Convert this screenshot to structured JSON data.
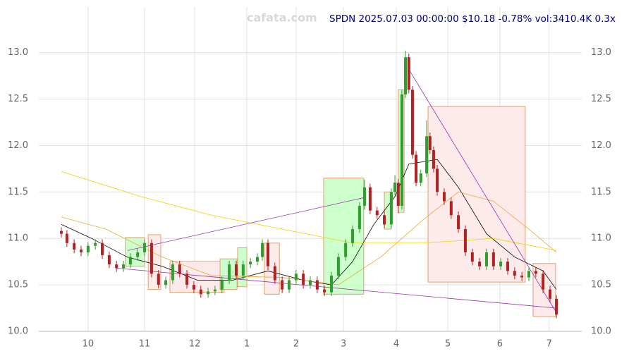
{
  "chart_data": {
    "type": "candlestick",
    "title": "SPDN 2025.07.03 00:00:00 $10.18 -0.78% vol:3410.4K 0.3x",
    "watermark": "cafata.com",
    "x": [
      8.1,
      10.1,
      12.7,
      15.2,
      17.7,
      20.3,
      22.8,
      25.3,
      27.9,
      30.4,
      32.9,
      35.5,
      38.0,
      40.5,
      43.0,
      45.6,
      48.1,
      50.6,
      53.2,
      55.7,
      58.2,
      60.8,
      63.3,
      65.8,
      68.4,
      70.9,
      73.4,
      76.0,
      78.5,
      80.3,
      82.3,
      84.8,
      87.4,
      89.9,
      92.4,
      95.0,
      97.5,
      100.0,
      102.6,
      105.1,
      107.6,
      110.2,
      112.7,
      115.2,
      117.0,
      119.0,
      121.5,
      124.1,
      126.6,
      127.9,
      129.1,
      130.4,
      131.7,
      132.9,
      134.2,
      135.5,
      137.2,
      139.3,
      140.5,
      141.8,
      143.1,
      145.6,
      148.1,
      150.7,
      153.2,
      155.7,
      158.3,
      160.8,
      163.3,
      165.9,
      168.4,
      170.9,
      173.5,
      176.0,
      178.5,
      181.1,
      183.6,
      185.9
    ],
    "open": [
      11.08,
      11.05,
      10.95,
      10.88,
      10.85,
      10.92,
      10.95,
      10.82,
      10.72,
      10.68,
      10.72,
      10.8,
      10.85,
      10.95,
      10.62,
      10.5,
      10.55,
      10.72,
      10.62,
      10.5,
      10.45,
      10.4,
      10.43,
      10.45,
      10.55,
      10.72,
      10.6,
      10.72,
      10.75,
      10.8,
      10.95,
      10.7,
      10.55,
      10.45,
      10.55,
      10.62,
      10.5,
      10.55,
      10.45,
      10.42,
      10.6,
      10.8,
      10.95,
      11.1,
      11.35,
      11.55,
      11.3,
      11.25,
      11.15,
      11.5,
      11.6,
      11.35,
      12.55,
      12.95,
      12.6,
      11.9,
      11.6,
      11.7,
      12.1,
      11.95,
      11.75,
      11.5,
      11.4,
      11.25,
      11.1,
      10.85,
      10.75,
      10.7,
      10.85,
      10.7,
      10.75,
      10.65,
      10.6,
      10.58,
      10.65,
      10.62,
      10.45,
      10.35
    ],
    "high": [
      11.12,
      11.09,
      10.99,
      10.92,
      10.96,
      10.99,
      10.99,
      10.86,
      10.76,
      10.76,
      10.84,
      10.89,
      10.99,
      10.99,
      10.66,
      10.59,
      10.76,
      10.76,
      10.66,
      10.54,
      10.49,
      10.47,
      10.49,
      10.59,
      10.76,
      10.76,
      10.76,
      10.79,
      10.84,
      10.99,
      10.99,
      10.74,
      10.59,
      10.59,
      10.66,
      10.66,
      10.59,
      10.59,
      10.49,
      10.64,
      10.84,
      10.99,
      11.14,
      11.39,
      11.63,
      11.59,
      11.34,
      11.29,
      11.54,
      11.68,
      11.64,
      12.6,
      13.02,
      12.99,
      12.64,
      11.94,
      11.74,
      12.27,
      12.14,
      11.99,
      11.79,
      11.54,
      11.44,
      11.29,
      11.14,
      10.89,
      10.79,
      10.89,
      10.89,
      10.79,
      10.79,
      10.69,
      10.64,
      10.69,
      10.69,
      10.66,
      10.49,
      10.39
    ],
    "low": [
      11.01,
      10.91,
      10.84,
      10.81,
      10.81,
      10.88,
      10.78,
      10.68,
      10.64,
      10.64,
      10.68,
      10.76,
      10.81,
      10.58,
      10.46,
      10.46,
      10.51,
      10.58,
      10.46,
      10.41,
      10.36,
      10.36,
      10.39,
      10.41,
      10.51,
      10.56,
      10.56,
      10.68,
      10.71,
      10.76,
      10.66,
      10.51,
      10.41,
      10.41,
      10.51,
      10.46,
      10.46,
      10.41,
      10.38,
      10.38,
      10.56,
      10.76,
      10.91,
      11.06,
      11.31,
      11.26,
      11.21,
      11.11,
      11.11,
      11.46,
      11.27,
      11.31,
      12.51,
      12.56,
      11.86,
      11.56,
      11.56,
      11.66,
      11.91,
      11.71,
      11.46,
      11.36,
      11.21,
      11.06,
      10.81,
      10.71,
      10.66,
      10.66,
      10.66,
      10.66,
      10.61,
      10.56,
      10.54,
      10.54,
      10.58,
      10.41,
      10.31,
      10.14
    ],
    "close": [
      11.05,
      10.95,
      10.88,
      10.85,
      10.92,
      10.95,
      10.82,
      10.72,
      10.68,
      10.72,
      10.8,
      10.85,
      10.95,
      10.62,
      10.5,
      10.55,
      10.72,
      10.62,
      10.5,
      10.45,
      10.4,
      10.43,
      10.45,
      10.55,
      10.72,
      10.6,
      10.72,
      10.75,
      10.8,
      10.95,
      10.7,
      10.55,
      10.45,
      10.55,
      10.62,
      10.5,
      10.55,
      10.45,
      10.42,
      10.6,
      10.8,
      10.95,
      11.1,
      11.35,
      11.55,
      11.3,
      11.25,
      11.15,
      11.5,
      11.6,
      11.35,
      12.55,
      12.95,
      12.6,
      11.9,
      11.6,
      11.7,
      12.1,
      11.95,
      11.75,
      11.5,
      11.4,
      11.25,
      11.1,
      10.85,
      10.75,
      10.7,
      10.85,
      10.7,
      10.75,
      10.65,
      10.6,
      10.58,
      10.65,
      10.62,
      10.45,
      10.35,
      10.18
    ],
    "up_color": "#2e9e2e",
    "down_color": "#b22222",
    "overlays": [
      {
        "color": "#000000",
        "x": [
          8.1,
          19.0,
          31.7,
          44.3,
          57.0,
          69.6,
          82.3,
          95.0,
          105.1,
          112.7,
          120.3,
          127.9,
          132.9,
          143.1,
          150.7,
          160.8,
          170.9,
          181.1,
          185.9
        ],
        "values": [
          11.15,
          11.0,
          10.8,
          10.7,
          10.55,
          10.55,
          10.65,
          10.55,
          10.5,
          10.75,
          11.15,
          11.45,
          11.8,
          11.85,
          11.55,
          11.05,
          10.8,
          10.65,
          10.45
        ]
      },
      {
        "color": "#f0a830",
        "x": [
          8.1,
          24.1,
          44.3,
          62.0,
          87.4,
          107.6,
          122.8,
          138.0,
          150.7,
          163.3,
          176.0,
          185.9
        ],
        "values": [
          11.23,
          11.1,
          10.8,
          10.6,
          10.58,
          10.5,
          10.8,
          11.2,
          11.5,
          11.4,
          11.1,
          10.85
        ]
      },
      {
        "color": "#f5d000",
        "x": [
          8.1,
          36.7,
          62.0,
          87.4,
          112.7,
          138.0,
          163.3,
          185.9
        ],
        "values": [
          11.72,
          11.45,
          11.25,
          11.1,
          10.95,
          10.95,
          11.0,
          10.87
        ]
      }
    ],
    "boxes": [
      {
        "x": [
          31.1,
          38.0
        ],
        "y": [
          10.7,
          11.01
        ],
        "color": "green"
      },
      {
        "x": [
          39.3,
          43.8
        ],
        "y": [
          10.45,
          11.04
        ],
        "color": "red"
      },
      {
        "x": [
          47.1,
          66.6
        ],
        "y": [
          10.42,
          10.75
        ],
        "color": "red"
      },
      {
        "x": [
          65.1,
          71.2
        ],
        "y": [
          10.45,
          10.78
        ],
        "color": "green"
      },
      {
        "x": [
          71.4,
          74.7
        ],
        "y": [
          10.48,
          10.9
        ],
        "color": "green"
      },
      {
        "x": [
          81.0,
          86.4
        ],
        "y": [
          10.4,
          10.95
        ],
        "color": "red"
      },
      {
        "x": [
          102.3,
          116.7
        ],
        "y": [
          10.4,
          11.65
        ],
        "color": "green"
      },
      {
        "x": [
          124.1,
          126.6
        ],
        "y": [
          11.1,
          11.5
        ],
        "color": "green"
      },
      {
        "x": [
          129.1,
          131.2
        ],
        "y": [
          11.28,
          12.6
        ],
        "color": "green"
      },
      {
        "x": [
          139.8,
          174.7
        ],
        "y": [
          10.53,
          12.42
        ],
        "color": "red"
      },
      {
        "x": [
          177.5,
          185.6
        ],
        "y": [
          10.16,
          10.73
        ],
        "color": "red"
      }
    ],
    "trend_lines": [
      {
        "x": [
          31.9,
          117.0
        ],
        "y": [
          10.87,
          11.44
        ],
        "color": "#9933aa"
      },
      {
        "x": [
          27.9,
          185.9
        ],
        "y": [
          10.68,
          10.25
        ],
        "color": "#9933aa"
      },
      {
        "x": [
          132.9,
          185.9
        ],
        "y": [
          12.82,
          10.2
        ],
        "color": "#9933aa"
      }
    ],
    "xlim": [
      0,
      195
    ],
    "ylim": [
      10.0,
      13.49
    ],
    "xticks": [
      {
        "value": 17.7,
        "label": "10"
      },
      {
        "value": 38.0,
        "label": "11"
      },
      {
        "value": 56.0,
        "label": "12"
      },
      {
        "value": 74.7,
        "label": "1"
      },
      {
        "value": 92.4,
        "label": "2"
      },
      {
        "value": 109.4,
        "label": "3"
      },
      {
        "value": 128.4,
        "label": "4"
      },
      {
        "value": 146.9,
        "label": "5"
      },
      {
        "value": 165.6,
        "label": "6"
      },
      {
        "value": 183.3,
        "label": "7"
      }
    ],
    "yticks": [
      {
        "value": 10.0,
        "label": "10.0"
      },
      {
        "value": 10.5,
        "label": "10.5"
      },
      {
        "value": 11.0,
        "label": "11.0"
      },
      {
        "value": 11.5,
        "label": "11.5"
      },
      {
        "value": 12.0,
        "label": "12.0"
      },
      {
        "value": 12.5,
        "label": "12.5"
      },
      {
        "value": 13.0,
        "label": "13.0"
      }
    ],
    "grid": true
  }
}
